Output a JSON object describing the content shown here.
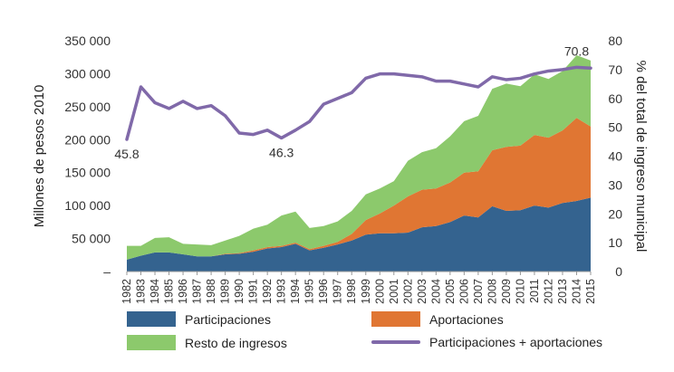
{
  "chart_data": {
    "type": "area",
    "stacked": true,
    "categories": [
      "1982",
      "1983",
      "1984",
      "1985",
      "1986",
      "1987",
      "1988",
      "1989",
      "1990",
      "1991",
      "1992",
      "1993",
      "1994",
      "1995",
      "1996",
      "1997",
      "1998",
      "1999",
      "2000",
      "2001",
      "2002",
      "2003",
      "2004",
      "2005",
      "2006",
      "2007",
      "2008",
      "2009",
      "2010",
      "2011",
      "2012",
      "2013",
      "2014",
      "2015"
    ],
    "series": [
      {
        "name": "Participaciones",
        "color": "#34638f",
        "axis": "left",
        "values": [
          18000,
          24000,
          29000,
          29000,
          26000,
          23000,
          23000,
          26000,
          27000,
          30000,
          35000,
          37000,
          42000,
          32000,
          36000,
          41000,
          47000,
          56000,
          58000,
          58000,
          59000,
          67000,
          69000,
          75000,
          85000,
          82000,
          99000,
          92000,
          93000,
          100000,
          97000,
          104000,
          107000,
          112000
        ]
      },
      {
        "name": "Aportaciones",
        "color": "#e07633",
        "axis": "left",
        "values": [
          0,
          0,
          0,
          0,
          0,
          0,
          0,
          1000,
          1000,
          2000,
          2000,
          2000,
          2000,
          2000,
          3000,
          4000,
          10000,
          22000,
          30000,
          42000,
          55000,
          57000,
          57000,
          60000,
          65000,
          70000,
          85000,
          97000,
          98000,
          107000,
          106000,
          110000,
          126000,
          108000
        ]
      },
      {
        "name": "Resto de ingresos",
        "color": "#8cc96c",
        "axis": "left",
        "values": [
          21000,
          15000,
          22000,
          23000,
          16000,
          18000,
          17000,
          20000,
          26000,
          33000,
          34000,
          46000,
          47000,
          32000,
          30000,
          31000,
          35000,
          39000,
          38000,
          37000,
          54000,
          57000,
          61000,
          70000,
          78000,
          84000,
          93000,
          96000,
          90000,
          92000,
          89000,
          90000,
          95000,
          100000
        ]
      },
      {
        "name": "Participaciones + aportaciones",
        "color": "#8069a9",
        "axis": "right",
        "type": "line",
        "values": [
          45.8,
          64,
          58.5,
          56.5,
          59,
          56.5,
          57.5,
          54,
          48,
          47.5,
          49,
          46.3,
          49,
          52,
          58,
          60,
          62,
          67,
          68.5,
          68.5,
          68,
          67.5,
          66,
          66,
          65,
          64,
          67.5,
          66.5,
          67,
          68.5,
          69.5,
          70,
          70.8,
          70.5
        ]
      }
    ],
    "title": "",
    "xlabel": "",
    "ylabel": "Millones de pesos 2010",
    "ylabel_right": "% del total de ingreso municipal",
    "ylim": [
      0,
      350000
    ],
    "ylim_right": [
      0,
      80
    ],
    "yticks": [
      "–",
      "50 000",
      "100 000",
      "150 000",
      "200 000",
      "250 000",
      "300 000",
      "350 000"
    ],
    "yticks_right": [
      "0",
      "10",
      "20",
      "30",
      "40",
      "50",
      "60",
      "70",
      "80"
    ],
    "annotations": [
      {
        "text": "45.8",
        "year": "1982",
        "value": 45.8
      },
      {
        "text": "46.3",
        "year": "1993",
        "value": 46.3
      },
      {
        "text": "70.8",
        "year": "2014",
        "value": 70.8
      }
    ],
    "legend_position": "bottom",
    "grid": false
  }
}
